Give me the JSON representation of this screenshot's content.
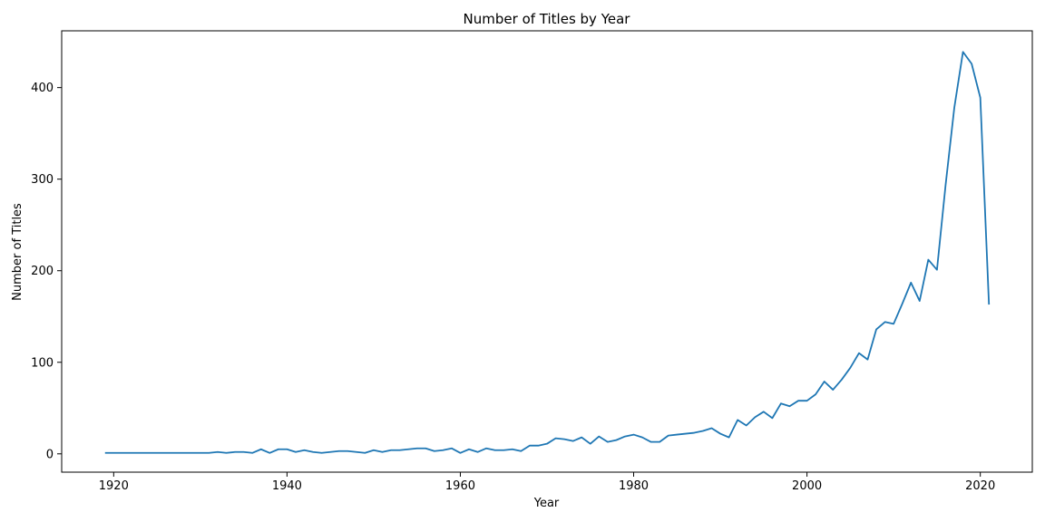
{
  "chart_data": {
    "type": "line",
    "title": "Number of Titles by Year",
    "xlabel": "Year",
    "ylabel": "Number of Titles",
    "xlim": [
      1914,
      2026
    ],
    "ylim": [
      -20,
      462
    ],
    "xticks": [
      1920,
      1940,
      1960,
      1980,
      2000,
      2020
    ],
    "yticks": [
      0,
      100,
      200,
      300,
      400
    ],
    "grid": false,
    "line_color": "#1f77b4",
    "series": [
      {
        "x": [
          1919,
          1920,
          1921,
          1922,
          1923,
          1924,
          1925,
          1926,
          1927,
          1928,
          1929,
          1930,
          1931,
          1932,
          1933,
          1934,
          1935,
          1936,
          1937,
          1938,
          1939,
          1940,
          1941,
          1942,
          1943,
          1944,
          1945,
          1946,
          1947,
          1948,
          1949,
          1950,
          1951,
          1952,
          1953,
          1954,
          1955,
          1956,
          1957,
          1958,
          1959,
          1960,
          1961,
          1962,
          1963,
          1964,
          1965,
          1966,
          1967,
          1968,
          1969,
          1970,
          1971,
          1972,
          1973,
          1974,
          1975,
          1976,
          1977,
          1978,
          1979,
          1980,
          1981,
          1982,
          1983,
          1984,
          1985,
          1986,
          1987,
          1988,
          1989,
          1990,
          1991,
          1992,
          1993,
          1994,
          1995,
          1996,
          1997,
          1998,
          1999,
          2000,
          2001,
          2002,
          2003,
          2004,
          2005,
          2006,
          2007,
          2008,
          2009,
          2010,
          2011,
          2012,
          2013,
          2014,
          2015,
          2016,
          2017,
          2018,
          2019,
          2020,
          2021
        ],
        "y": [
          1,
          1,
          1,
          1,
          1,
          1,
          1,
          1,
          1,
          1,
          1,
          1,
          1,
          2,
          1,
          2,
          2,
          1,
          5,
          1,
          5,
          5,
          2,
          4,
          2,
          1,
          2,
          3,
          3,
          2,
          1,
          4,
          2,
          4,
          4,
          5,
          6,
          6,
          3,
          4,
          6,
          1,
          5,
          2,
          6,
          4,
          4,
          5,
          3,
          9,
          9,
          11,
          17,
          16,
          14,
          18,
          11,
          19,
          13,
          15,
          19,
          21,
          18,
          13,
          13,
          20,
          21,
          22,
          23,
          25,
          28,
          22,
          18,
          37,
          31,
          40,
          46,
          39,
          55,
          52,
          58,
          58,
          65,
          79,
          70,
          81,
          94,
          110,
          103,
          136,
          144,
          142,
          164,
          187,
          167,
          212,
          201,
          294,
          378,
          439,
          426,
          389,
          163
        ]
      }
    ]
  }
}
